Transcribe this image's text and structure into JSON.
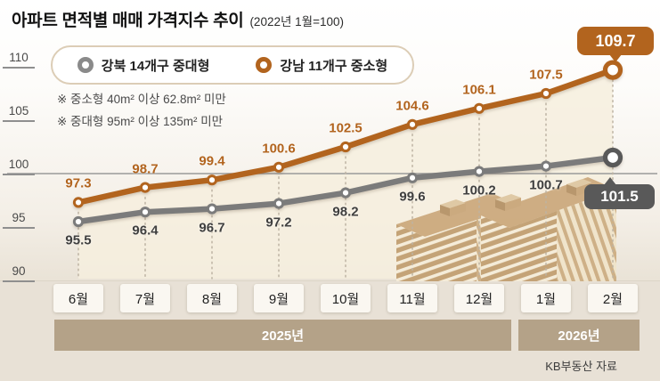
{
  "chart_data": {
    "type": "line",
    "title": "아파트 면적별 매매 가격지수 추이",
    "subtitle": "(2022년 1월=100)",
    "notes": [
      "※ 중소형 40m² 이상 62.8m² 미만",
      "※ 중대형 95m² 이상 135m² 미만"
    ],
    "source": "KB부동산 자료",
    "x_categories": [
      "6월",
      "7월",
      "8월",
      "9월",
      "10월",
      "11월",
      "12월",
      "1월",
      "2월"
    ],
    "year_bands": [
      {
        "label": "2025년",
        "from_index": 0,
        "to_index": 6
      },
      {
        "label": "2026년",
        "from_index": 7,
        "to_index": 8
      }
    ],
    "y_ticks": [
      110,
      105,
      100,
      95,
      90
    ],
    "ylim": [
      90,
      111
    ],
    "baseline": 100,
    "grid": "baseline-only",
    "legend_position": "top",
    "series": [
      {
        "name": "강북 14개구 중대형",
        "color": "#7b7b7b",
        "label_color": "#3f3f3f",
        "badge_color": "#595959",
        "end_label": "101.5",
        "values": [
          95.5,
          96.4,
          96.7,
          97.2,
          98.2,
          99.6,
          100.2,
          100.7,
          101.5
        ]
      },
      {
        "name": "강남 11개구 중소형",
        "color": "#b2641e",
        "label_color": "#b2641e",
        "badge_color": "#b2641e",
        "end_label": "109.7",
        "values": [
          97.3,
          98.7,
          99.4,
          100.6,
          102.5,
          104.6,
          106.1,
          107.5,
          109.7
        ]
      }
    ]
  }
}
